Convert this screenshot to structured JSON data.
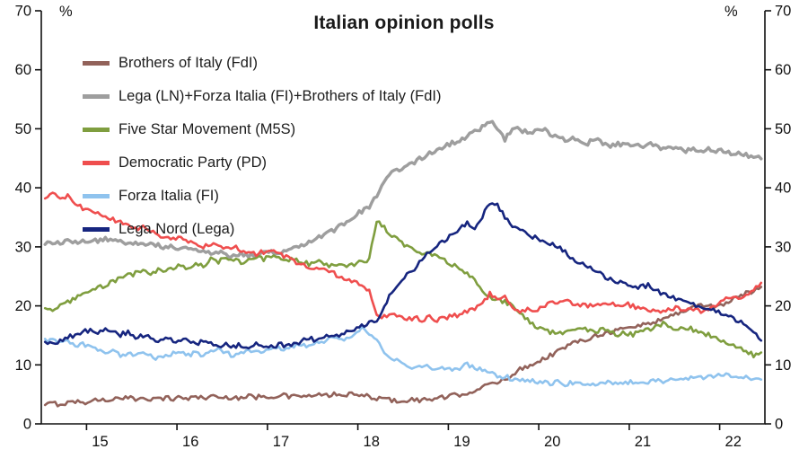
{
  "chart_data": {
    "type": "line",
    "title": "Italian opinion polls",
    "y_unit": "%",
    "background": "#ffffff",
    "axis_color": "#111111",
    "grid": false,
    "legend_position": "top-left",
    "xlim": [
      2014.5,
      2022.5
    ],
    "ylim": [
      0,
      70
    ],
    "yticks": [
      0,
      10,
      20,
      30,
      40,
      50,
      60,
      70
    ],
    "xticks": [
      {
        "tick": 2015,
        "label": "15",
        "label_x": 2015.15
      },
      {
        "tick": 2016,
        "label": "16",
        "label_x": 2016.15
      },
      {
        "tick": 2017,
        "label": "17",
        "label_x": 2017.15
      },
      {
        "tick": 2018,
        "label": "18",
        "label_x": 2018.15
      },
      {
        "tick": 2019,
        "label": "19",
        "label_x": 2019.15
      },
      {
        "tick": 2020,
        "label": "20",
        "label_x": 2020.15
      },
      {
        "tick": 2021,
        "label": "21",
        "label_x": 2021.15
      },
      {
        "tick": 2022,
        "label": "22",
        "label_x": 2022.15
      }
    ],
    "x_start": 2014.542,
    "x_step": 0.083333,
    "noise": 0.4,
    "draw_order": [
      1,
      0,
      2,
      3,
      4,
      5
    ],
    "series": [
      {
        "name": "Brothers of Italy (FdI)",
        "color": "#92625a",
        "width": 2.6,
        "values": [
          3.2,
          3.5,
          3.3,
          3.6,
          3.8,
          3.6,
          3.9,
          4.1,
          4.0,
          4.3,
          4.1,
          4.4,
          4.2,
          4.5,
          4.3,
          4.2,
          4.4,
          4.3,
          4.5,
          4.3,
          4.6,
          4.4,
          4.7,
          4.5,
          4.4,
          4.6,
          4.4,
          4.7,
          4.5,
          4.8,
          4.6,
          4.9,
          4.7,
          4.6,
          4.8,
          4.6,
          4.9,
          4.7,
          5.0,
          4.8,
          5.0,
          4.9,
          4.8,
          4.6,
          4.4,
          4.2,
          4.0,
          3.9,
          4.0,
          4.1,
          4.0,
          4.2,
          4.3,
          4.5,
          4.7,
          5.0,
          5.3,
          5.7,
          6.2,
          6.6,
          7.0,
          7.6,
          8.4,
          9.2,
          9.8,
          10.4,
          11.0,
          11.6,
          12.3,
          13.0,
          13.6,
          14.1,
          14.5,
          15.0,
          15.3,
          15.6,
          15.9,
          16.2,
          16.4,
          16.7,
          17.0,
          17.4,
          17.8,
          18.3,
          18.8,
          19.3,
          19.8,
          20.2,
          20.0,
          19.8,
          20.3,
          20.9,
          21.5,
          22.1,
          22.6,
          23.2
        ]
      },
      {
        "name": "Lega (LN)+Forza Italia (FI)+Brothers of Italy (FdI)",
        "color": "#9e9e9e",
        "width": 3.4,
        "values": [
          30.4,
          30.8,
          30.5,
          31.0,
          30.6,
          30.9,
          31.2,
          30.8,
          31.4,
          30.9,
          31.1,
          30.6,
          30.9,
          30.4,
          30.7,
          30.2,
          29.9,
          30.1,
          29.7,
          29.9,
          29.4,
          29.1,
          28.8,
          29.2,
          28.7,
          28.5,
          28.9,
          28.4,
          28.7,
          29.0,
          29.3,
          29.0,
          29.6,
          30.0,
          30.4,
          30.9,
          31.4,
          32.0,
          32.6,
          33.4,
          34.3,
          35.2,
          36.0,
          36.8,
          38.5,
          41.0,
          42.5,
          43.2,
          43.8,
          44.3,
          45.1,
          45.8,
          46.4,
          47.0,
          47.6,
          48.2,
          48.8,
          49.4,
          50.2,
          51.3,
          50.2,
          48.3,
          49.6,
          50.0,
          49.2,
          49.6,
          49.9,
          49.2,
          48.6,
          48.1,
          48.5,
          48.0,
          47.6,
          48.1,
          47.6,
          47.2,
          47.6,
          47.1,
          47.4,
          47.0,
          47.5,
          47.0,
          46.6,
          47.1,
          46.6,
          46.2,
          46.7,
          46.2,
          46.5,
          46.1,
          46.3,
          45.8,
          46.1,
          45.6,
          45.2,
          44.9
        ]
      },
      {
        "name": "Five Star Movement (M5S)",
        "color": "#7f9e3f",
        "width": 2.6,
        "values": [
          19.6,
          19.2,
          20.1,
          20.6,
          21.2,
          21.8,
          22.4,
          23.0,
          23.6,
          24.1,
          24.6,
          25.1,
          25.5,
          25.9,
          25.5,
          26.2,
          25.8,
          26.4,
          26.8,
          26.4,
          27.2,
          26.9,
          27.8,
          27.4,
          28.2,
          27.8,
          27.4,
          27.9,
          28.3,
          27.9,
          28.4,
          27.9,
          27.5,
          28.0,
          27.6,
          27.1,
          27.6,
          27.2,
          26.7,
          27.1,
          26.6,
          27.0,
          27.4,
          27.9,
          34.6,
          33.2,
          31.8,
          30.9,
          30.2,
          29.6,
          29.1,
          28.7,
          28.2,
          27.6,
          27.0,
          26.2,
          25.3,
          24.2,
          22.6,
          21.4,
          21.0,
          20.6,
          20.1,
          19.0,
          17.6,
          16.6,
          16.0,
          15.6,
          15.1,
          15.5,
          16.0,
          16.4,
          16.0,
          15.6,
          16.0,
          15.5,
          15.1,
          15.4,
          15.1,
          15.5,
          16.0,
          16.4,
          16.9,
          16.5,
          16.1,
          16.4,
          16.0,
          15.6,
          15.1,
          14.6,
          14.1,
          13.6,
          13.1,
          12.5,
          11.6,
          12.1
        ]
      },
      {
        "name": "Democratic Party (PD)",
        "color": "#ef4e4e",
        "width": 2.6,
        "values": [
          38.2,
          39.1,
          37.8,
          38.6,
          37.2,
          36.6,
          36.1,
          35.6,
          35.1,
          34.6,
          34.1,
          33.6,
          33.1,
          33.5,
          32.6,
          32.1,
          31.6,
          31.2,
          31.5,
          31.0,
          30.6,
          30.1,
          30.5,
          30.0,
          29.6,
          30.0,
          29.5,
          29.1,
          28.7,
          29.2,
          29.6,
          29.1,
          28.2,
          27.6,
          27.1,
          26.6,
          26.6,
          26.1,
          25.6,
          25.1,
          24.6,
          24.1,
          23.2,
          22.6,
          18.6,
          18.1,
          18.5,
          18.0,
          17.6,
          18.0,
          17.6,
          18.0,
          17.6,
          18.1,
          18.1,
          18.6,
          19.1,
          19.6,
          20.2,
          22.1,
          21.1,
          21.5,
          19.6,
          19.1,
          19.6,
          19.1,
          20.0,
          20.5,
          20.1,
          21.0,
          20.5,
          20.1,
          20.0,
          20.4,
          20.0,
          20.5,
          20.1,
          20.4,
          20.0,
          19.6,
          19.1,
          19.5,
          19.1,
          19.5,
          19.6,
          19.1,
          19.5,
          19.1,
          19.6,
          20.1,
          21.0,
          21.4,
          21.1,
          21.9,
          22.5,
          23.9
        ]
      },
      {
        "name": "Forza Italia (FI)",
        "color": "#8fc3ee",
        "width": 2.6,
        "values": [
          14.4,
          14.0,
          13.6,
          14.1,
          13.1,
          13.5,
          13.0,
          12.6,
          12.1,
          12.5,
          11.6,
          12.0,
          11.6,
          12.0,
          11.5,
          11.1,
          11.5,
          12.0,
          12.1,
          11.6,
          12.0,
          11.6,
          12.1,
          12.5,
          12.0,
          11.6,
          12.0,
          12.4,
          12.0,
          12.5,
          12.6,
          13.0,
          12.6,
          13.1,
          13.5,
          13.1,
          13.6,
          14.0,
          14.5,
          14.1,
          14.6,
          15.2,
          16.1,
          15.5,
          14.0,
          12.1,
          11.0,
          10.5,
          10.0,
          9.6,
          10.0,
          9.5,
          9.1,
          9.5,
          9.1,
          9.5,
          10.0,
          9.5,
          9.0,
          8.6,
          8.1,
          8.0,
          7.6,
          7.1,
          7.5,
          7.1,
          7.0,
          6.8,
          7.1,
          6.6,
          7.0,
          6.8,
          7.0,
          6.6,
          6.9,
          7.1,
          6.8,
          7.0,
          7.1,
          7.3,
          7.0,
          7.5,
          7.2,
          7.5,
          7.8,
          7.5,
          8.0,
          7.8,
          8.1,
          8.2,
          8.1,
          8.3,
          8.0,
          7.8,
          7.6,
          7.5
        ]
      },
      {
        "name": "Lega Nord (Lega)",
        "color": "#16257f",
        "width": 2.6,
        "values": [
          13.9,
          13.5,
          14.1,
          14.6,
          15.1,
          15.5,
          16.0,
          15.5,
          16.4,
          15.6,
          15.1,
          15.5,
          14.6,
          15.0,
          14.5,
          14.1,
          14.5,
          14.0,
          14.4,
          14.0,
          13.6,
          14.0,
          13.5,
          13.1,
          13.5,
          13.0,
          13.4,
          13.0,
          13.5,
          13.1,
          13.0,
          13.5,
          13.1,
          13.6,
          14.0,
          14.5,
          14.1,
          14.6,
          15.0,
          15.1,
          15.6,
          16.1,
          16.6,
          17.1,
          17.5,
          20.1,
          22.2,
          24.1,
          25.2,
          26.3,
          28.1,
          29.2,
          30.2,
          31.1,
          32.2,
          33.1,
          34.0,
          33.2,
          35.1,
          37.4,
          37.0,
          35.1,
          33.6,
          33.1,
          32.1,
          31.6,
          31.0,
          30.5,
          30.0,
          29.1,
          28.1,
          27.1,
          26.6,
          26.1,
          25.1,
          24.6,
          24.1,
          23.6,
          23.5,
          23.1,
          23.5,
          22.6,
          22.1,
          21.6,
          21.1,
          20.6,
          20.1,
          19.6,
          19.5,
          19.1,
          18.5,
          18.0,
          17.4,
          16.5,
          15.4,
          14.1
        ]
      }
    ]
  }
}
